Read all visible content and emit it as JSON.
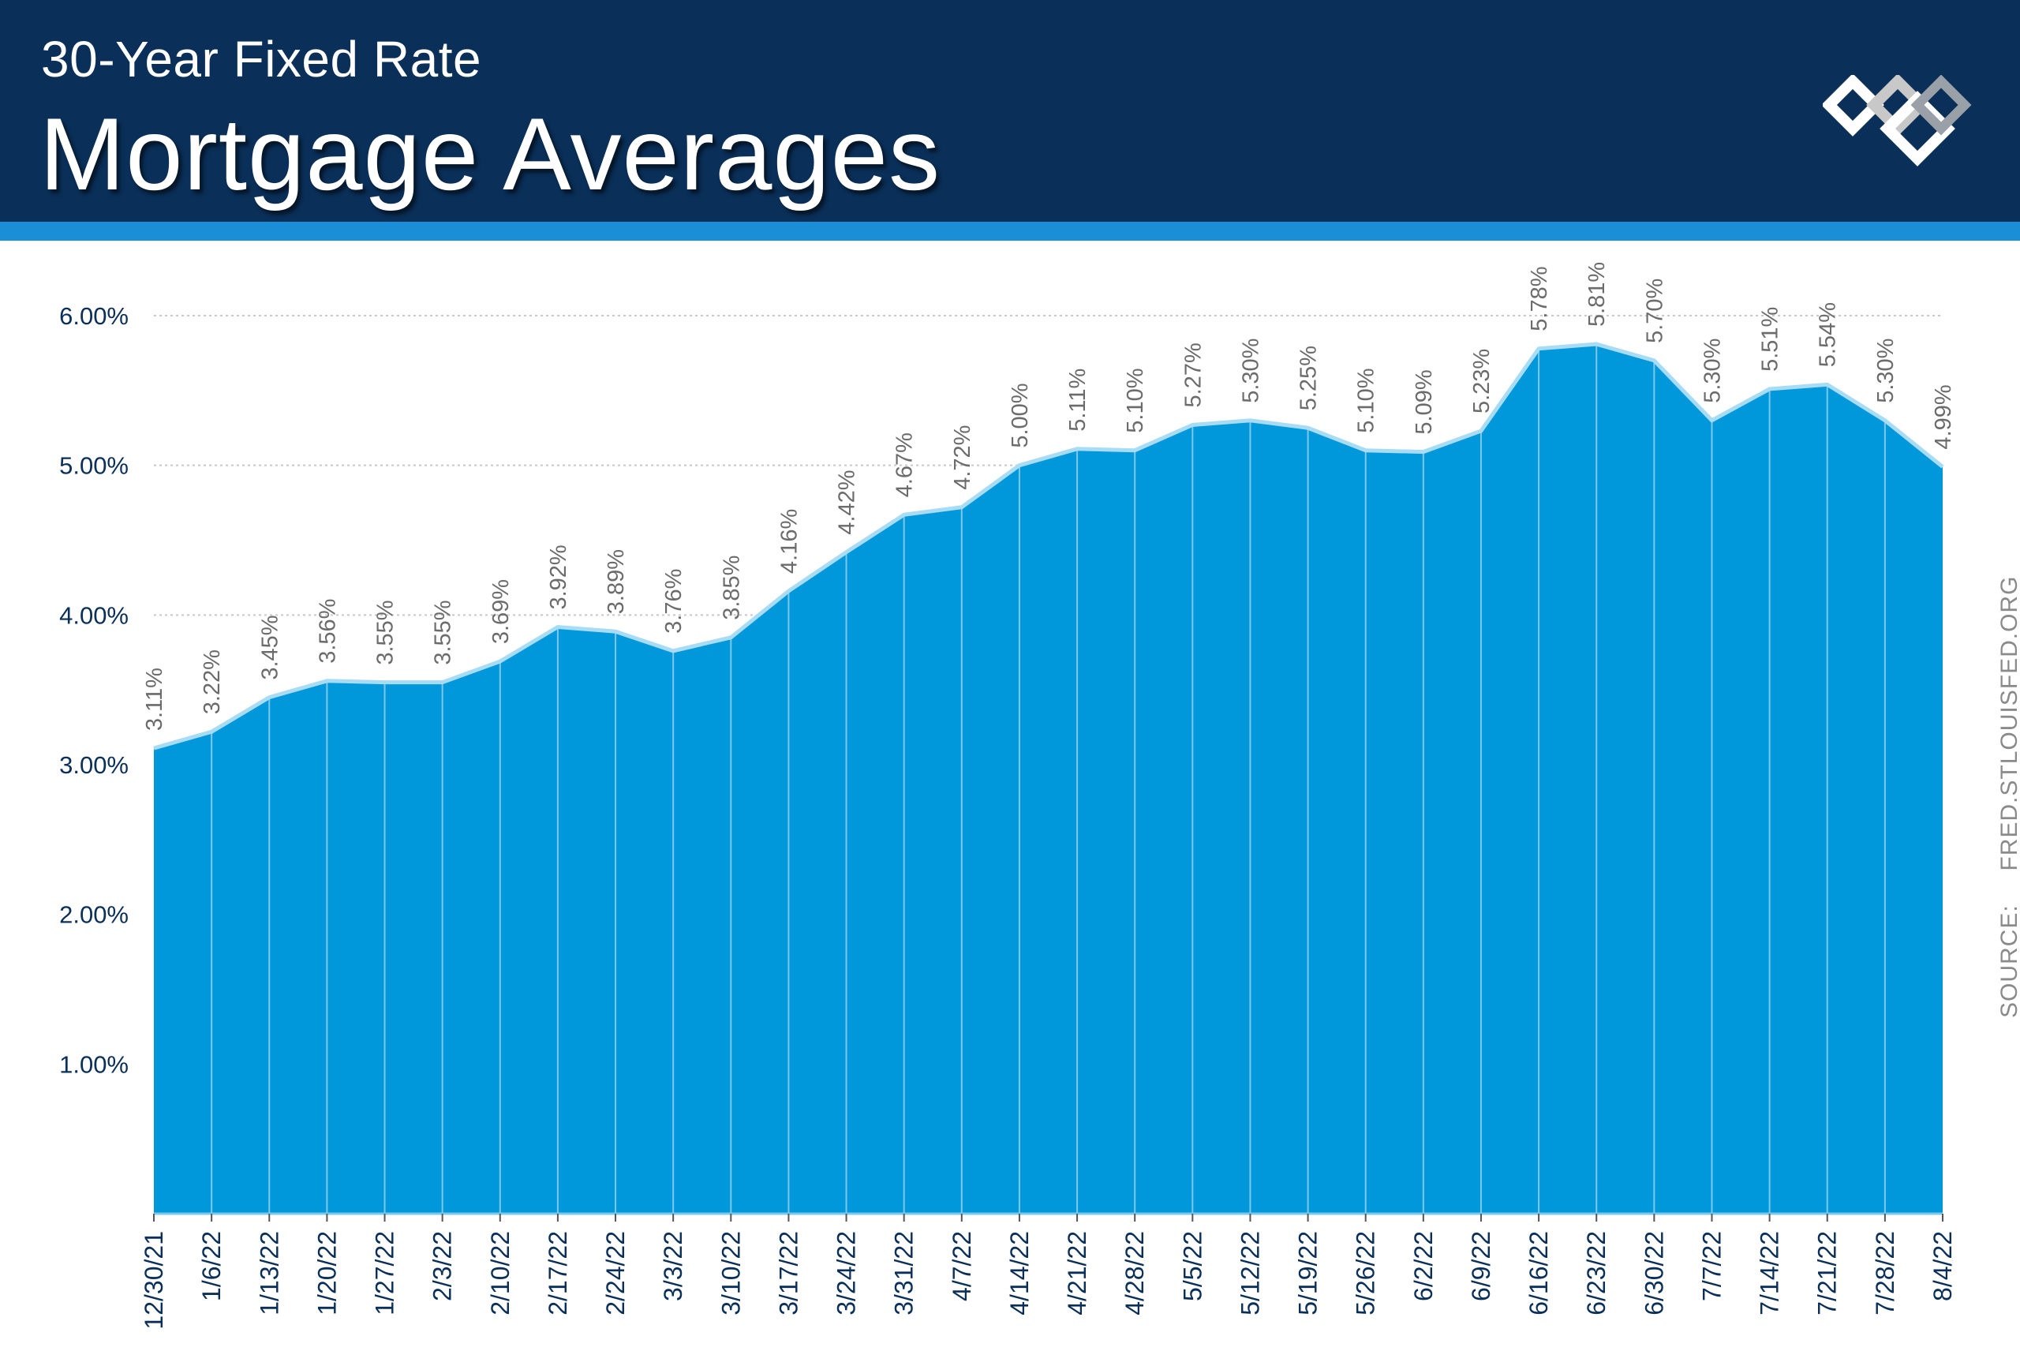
{
  "header": {
    "subtitle": "30-Year Fixed Rate",
    "title": "Mortgage Averages"
  },
  "logo": {
    "icon": "brand-logo-icon"
  },
  "source": {
    "label": "SOURCE:",
    "value": "FRED.STLOUISFED.ORG"
  },
  "colors": {
    "header_bg": "#0a2f58",
    "stripe": "#1a8fd8",
    "area_fill": "#0098db",
    "line": "#a7dcf4",
    "label_text": "#6b6b6b",
    "axis_text": "#0a2f58"
  },
  "chart_data": {
    "type": "area",
    "title": "",
    "xlabel": "",
    "ylabel": "",
    "ylim": [
      0,
      6
    ],
    "yticks": [
      "1.00%",
      "2.00%",
      "3.00%",
      "4.00%",
      "5.00%",
      "6.00%"
    ],
    "grid": true,
    "categories": [
      "12/30/21",
      "1/6/22",
      "1/13/22",
      "1/20/22",
      "1/27/22",
      "2/3/22",
      "2/10/22",
      "2/17/22",
      "2/24/22",
      "3/3/22",
      "3/10/22",
      "3/17/22",
      "3/24/22",
      "3/31/22",
      "4/7/22",
      "4/14/22",
      "4/21/22",
      "4/28/22",
      "5/5/22",
      "5/12/22",
      "5/19/22",
      "5/26/22",
      "6/2/22",
      "6/9/22",
      "6/16/22",
      "6/23/22",
      "6/30/22",
      "7/7/22",
      "7/14/22",
      "7/21/22",
      "7/28/22",
      "8/4/22"
    ],
    "values": [
      3.11,
      3.22,
      3.45,
      3.56,
      3.55,
      3.55,
      3.69,
      3.92,
      3.89,
      3.76,
      3.85,
      4.16,
      4.42,
      4.67,
      4.72,
      5.0,
      5.11,
      5.1,
      5.27,
      5.3,
      5.25,
      5.1,
      5.09,
      5.23,
      5.78,
      5.81,
      5.7,
      5.3,
      5.51,
      5.54,
      5.3,
      4.99
    ],
    "data_labels": [
      "3.11%",
      "3.22%",
      "3.45%",
      "3.56%",
      "3.55%",
      "3.55%",
      "3.69%",
      "3.92%",
      "3.89%",
      "3.76%",
      "3.85%",
      "4.16%",
      "4.42%",
      "4.67%",
      "4.72%",
      "5.00%",
      "5.11%",
      "5.10%",
      "5.27%",
      "5.30%",
      "5.25%",
      "5.10%",
      "5.09%",
      "5.23%",
      "5.78%",
      "5.81%",
      "5.70%",
      "5.30%",
      "5.51%",
      "5.54%",
      "5.30%",
      "4.99%"
    ]
  }
}
